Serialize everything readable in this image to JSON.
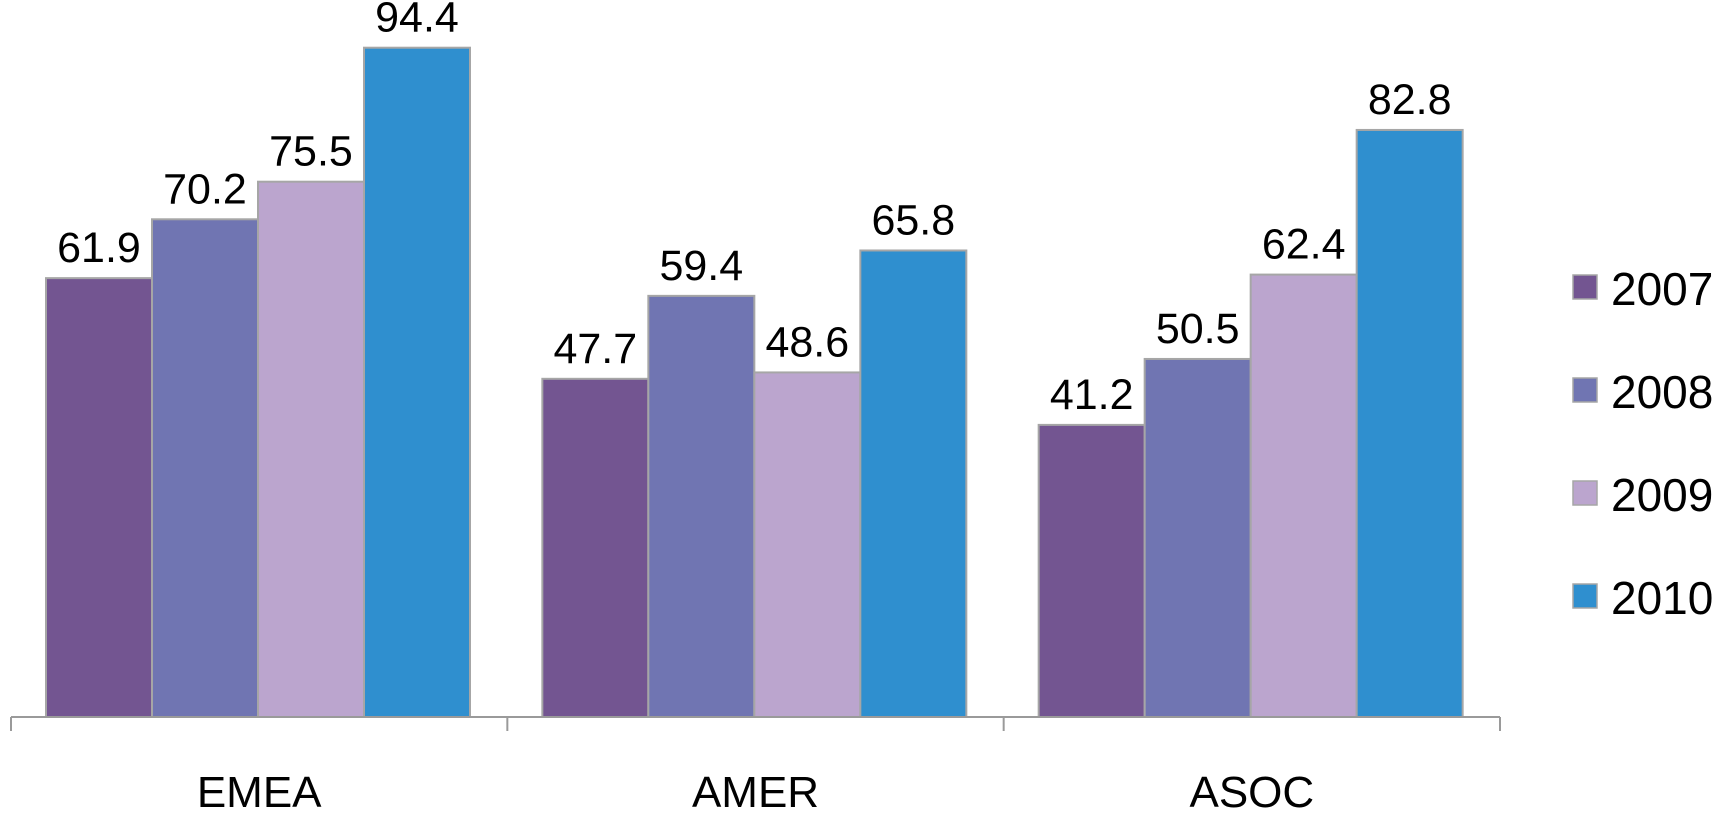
{
  "chart_data": {
    "type": "bar",
    "categories": [
      "EMEA",
      "AMER",
      "ASOC"
    ],
    "series": [
      {
        "name": "2007",
        "color": "#735591",
        "values": [
          61.9,
          47.7,
          41.2
        ]
      },
      {
        "name": "2008",
        "color": "#7075B2",
        "values": [
          70.2,
          59.4,
          50.5
        ]
      },
      {
        "name": "2009",
        "color": "#BBA5CE",
        "values": [
          75.5,
          48.6,
          62.4
        ]
      },
      {
        "name": "2010",
        "color": "#2F8FCF",
        "values": [
          94.4,
          65.8,
          82.8
        ]
      }
    ],
    "ylim": [
      0,
      100
    ],
    "data_labels": true,
    "grid": false,
    "legend_position": "right"
  }
}
